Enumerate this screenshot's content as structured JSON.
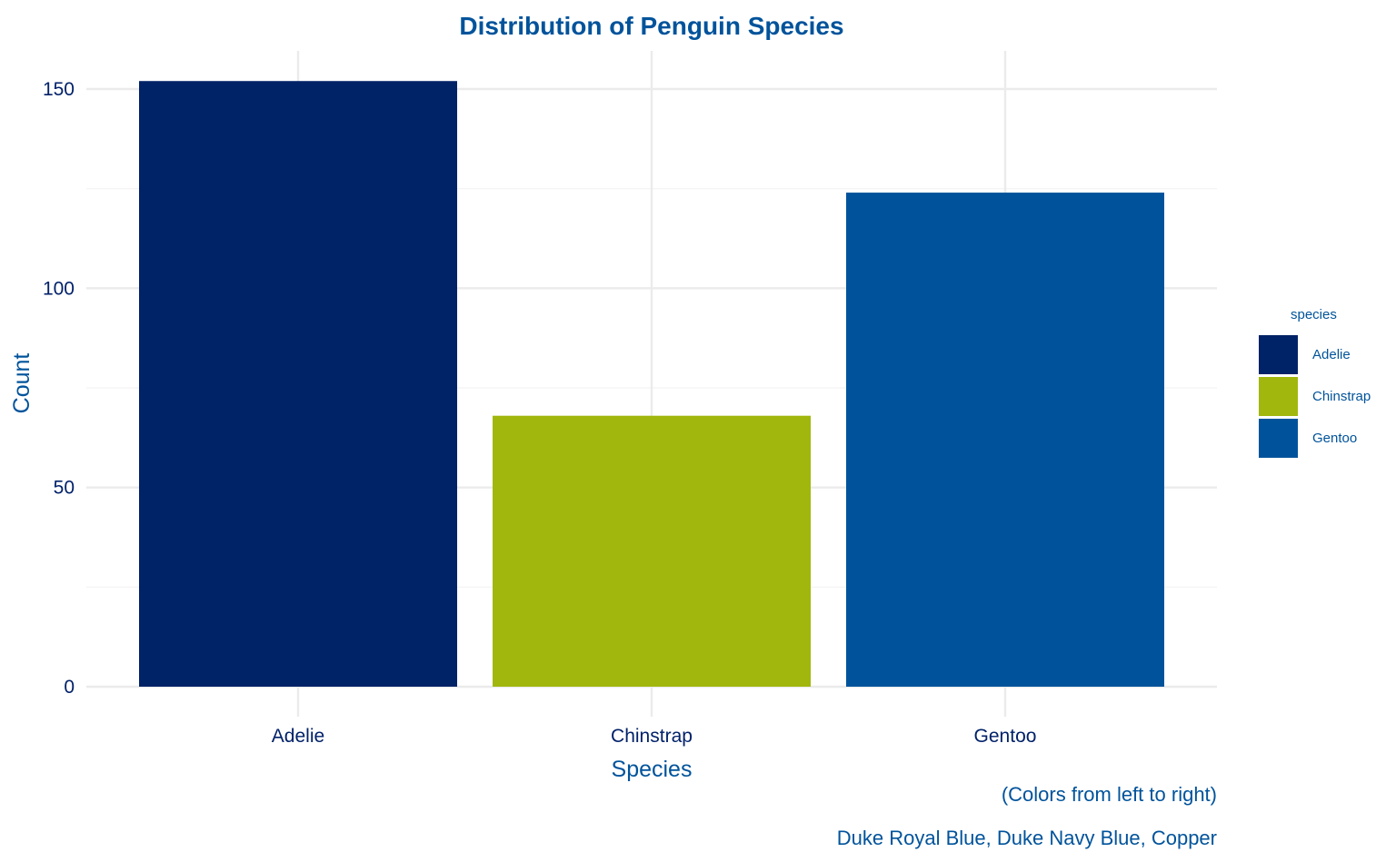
{
  "chart_data": {
    "type": "bar",
    "title": "Distribution of Penguin Species",
    "xlabel": "Species",
    "ylabel": "Count",
    "categories": [
      "Adelie",
      "Chinstrap",
      "Gentoo"
    ],
    "values": [
      152,
      68,
      124
    ],
    "colors": [
      "#002266",
      "#A1B70D",
      "#00539B"
    ],
    "ylim": [
      0,
      160
    ],
    "yticks": [
      0,
      50,
      100,
      150
    ],
    "grid": true,
    "legend": {
      "title": "species",
      "placement": "right",
      "entries": [
        "Adelie",
        "Chinstrap",
        "Gentoo"
      ]
    },
    "caption": [
      "(Colors from left to right)",
      "Duke Royal Blue, Duke Navy Blue, Copper"
    ]
  },
  "theme": {
    "title_color": "#00539B",
    "axis_title_color": "#00539B",
    "tick_color": "#012169",
    "legend_text_color": "#00539B",
    "caption_color": "#00539B",
    "grid_major": "#EBEBEB",
    "grid_minor": "#F2F2F2"
  }
}
